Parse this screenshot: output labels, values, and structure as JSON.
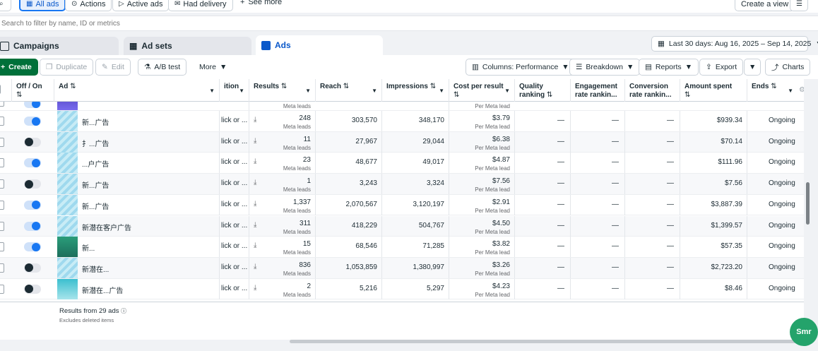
{
  "toolbar_top": {
    "all_ads": "All ads",
    "actions": "Actions",
    "active_ads": "Active ads",
    "had_delivery": "Had delivery",
    "see_more": "See more",
    "create_view": "Create a view"
  },
  "search": {
    "placeholder": "Search to filter by name, ID or metrics"
  },
  "tabs": {
    "campaigns": "Campaigns",
    "ad_sets": "Ad sets",
    "ads": "Ads"
  },
  "date_range": "Last 30 days: Aug 16, 2025 – Sep 14, 2025",
  "actions_bar": {
    "create": "Create",
    "duplicate": "Duplicate",
    "edit": "Edit",
    "ab_test": "A/B test",
    "more": "More",
    "columns": "Columns: Performance",
    "breakdown": "Breakdown",
    "reports": "Reports",
    "export": "Export",
    "charts": "Charts"
  },
  "columns": {
    "off_on": "Off / On",
    "ad": "Ad",
    "attribution": "ition",
    "results": "Results",
    "reach": "Reach",
    "impressions": "Impressions",
    "cost_per_result": "Cost per result",
    "quality_ranking": "Quality ranking",
    "engagement": "Engagement rate rankin...",
    "conversion": "Conversion rate rankin...",
    "amount_spent": "Amount spent",
    "ends": "Ends"
  },
  "rows": [
    {
      "name": "新...广告",
      "attribution": "lick or ...",
      "results": "248",
      "reach": "303,570",
      "impressions": "348,170",
      "cpr": "$3.79",
      "quality": "—",
      "engagement": "—",
      "conversion": "—",
      "spent": "$939.34",
      "ends": "Ongoing",
      "on": true
    },
    {
      "name": "扌...广告",
      "attribution": "lick or ...",
      "results": "11",
      "reach": "27,967",
      "impressions": "29,044",
      "cpr": "$6.38",
      "quality": "—",
      "engagement": "—",
      "conversion": "—",
      "spent": "$70.14",
      "ends": "Ongoing",
      "on": false
    },
    {
      "name": "...户广告",
      "attribution": "lick or ...",
      "results": "23",
      "reach": "48,677",
      "impressions": "49,017",
      "cpr": "$4.87",
      "quality": "—",
      "engagement": "—",
      "conversion": "—",
      "spent": "$111.96",
      "ends": "Ongoing",
      "on": true
    },
    {
      "name": "新...广告",
      "attribution": "lick or ...",
      "results": "1",
      "reach": "3,243",
      "impressions": "3,324",
      "cpr": "$7.56",
      "quality": "—",
      "engagement": "—",
      "conversion": "—",
      "spent": "$7.56",
      "ends": "Ongoing",
      "on": false
    },
    {
      "name": "新...广告",
      "attribution": "lick or ...",
      "results": "1,337",
      "reach": "2,070,567",
      "impressions": "3,120,197",
      "cpr": "$2.91",
      "quality": "—",
      "engagement": "—",
      "conversion": "—",
      "spent": "$3,887.39",
      "ends": "Ongoing",
      "on": true
    },
    {
      "name": "新潜在客户广告",
      "attribution": "lick or ...",
      "results": "311",
      "reach": "418,229",
      "impressions": "504,767",
      "cpr": "$4.50",
      "quality": "—",
      "engagement": "—",
      "conversion": "—",
      "spent": "$1,399.57",
      "ends": "Ongoing",
      "on": true
    },
    {
      "name": "新...",
      "attribution": "lick or ...",
      "results": "15",
      "reach": "68,546",
      "impressions": "71,285",
      "cpr": "$3.82",
      "quality": "—",
      "engagement": "—",
      "conversion": "—",
      "spent": "$57.35",
      "ends": "Ongoing",
      "on": true
    },
    {
      "name": "新潜在...",
      "attribution": "lick or ...",
      "results": "836",
      "reach": "1,053,859",
      "impressions": "1,380,997",
      "cpr": "$3.26",
      "quality": "—",
      "engagement": "—",
      "conversion": "—",
      "spent": "$2,723.20",
      "ends": "Ongoing",
      "on": false
    },
    {
      "name": "新潜在...广告",
      "attribution": "lick or ...",
      "results": "2",
      "reach": "5,216",
      "impressions": "5,297",
      "cpr": "$4.23",
      "quality": "—",
      "engagement": "—",
      "conversion": "—",
      "spent": "$8.46",
      "ends": "Ongoing",
      "on": false
    }
  ],
  "units": {
    "result_unit": "Meta leads",
    "cpr_unit": "Per Meta lead"
  },
  "footer": {
    "results_from": "Results from 29 ads",
    "excludes": "Excludes deleted items"
  },
  "chat_bubble": "Smr",
  "colors": {
    "accent": "#1877f2",
    "create_green": "#00703a",
    "chat_green": "#24a36b"
  }
}
